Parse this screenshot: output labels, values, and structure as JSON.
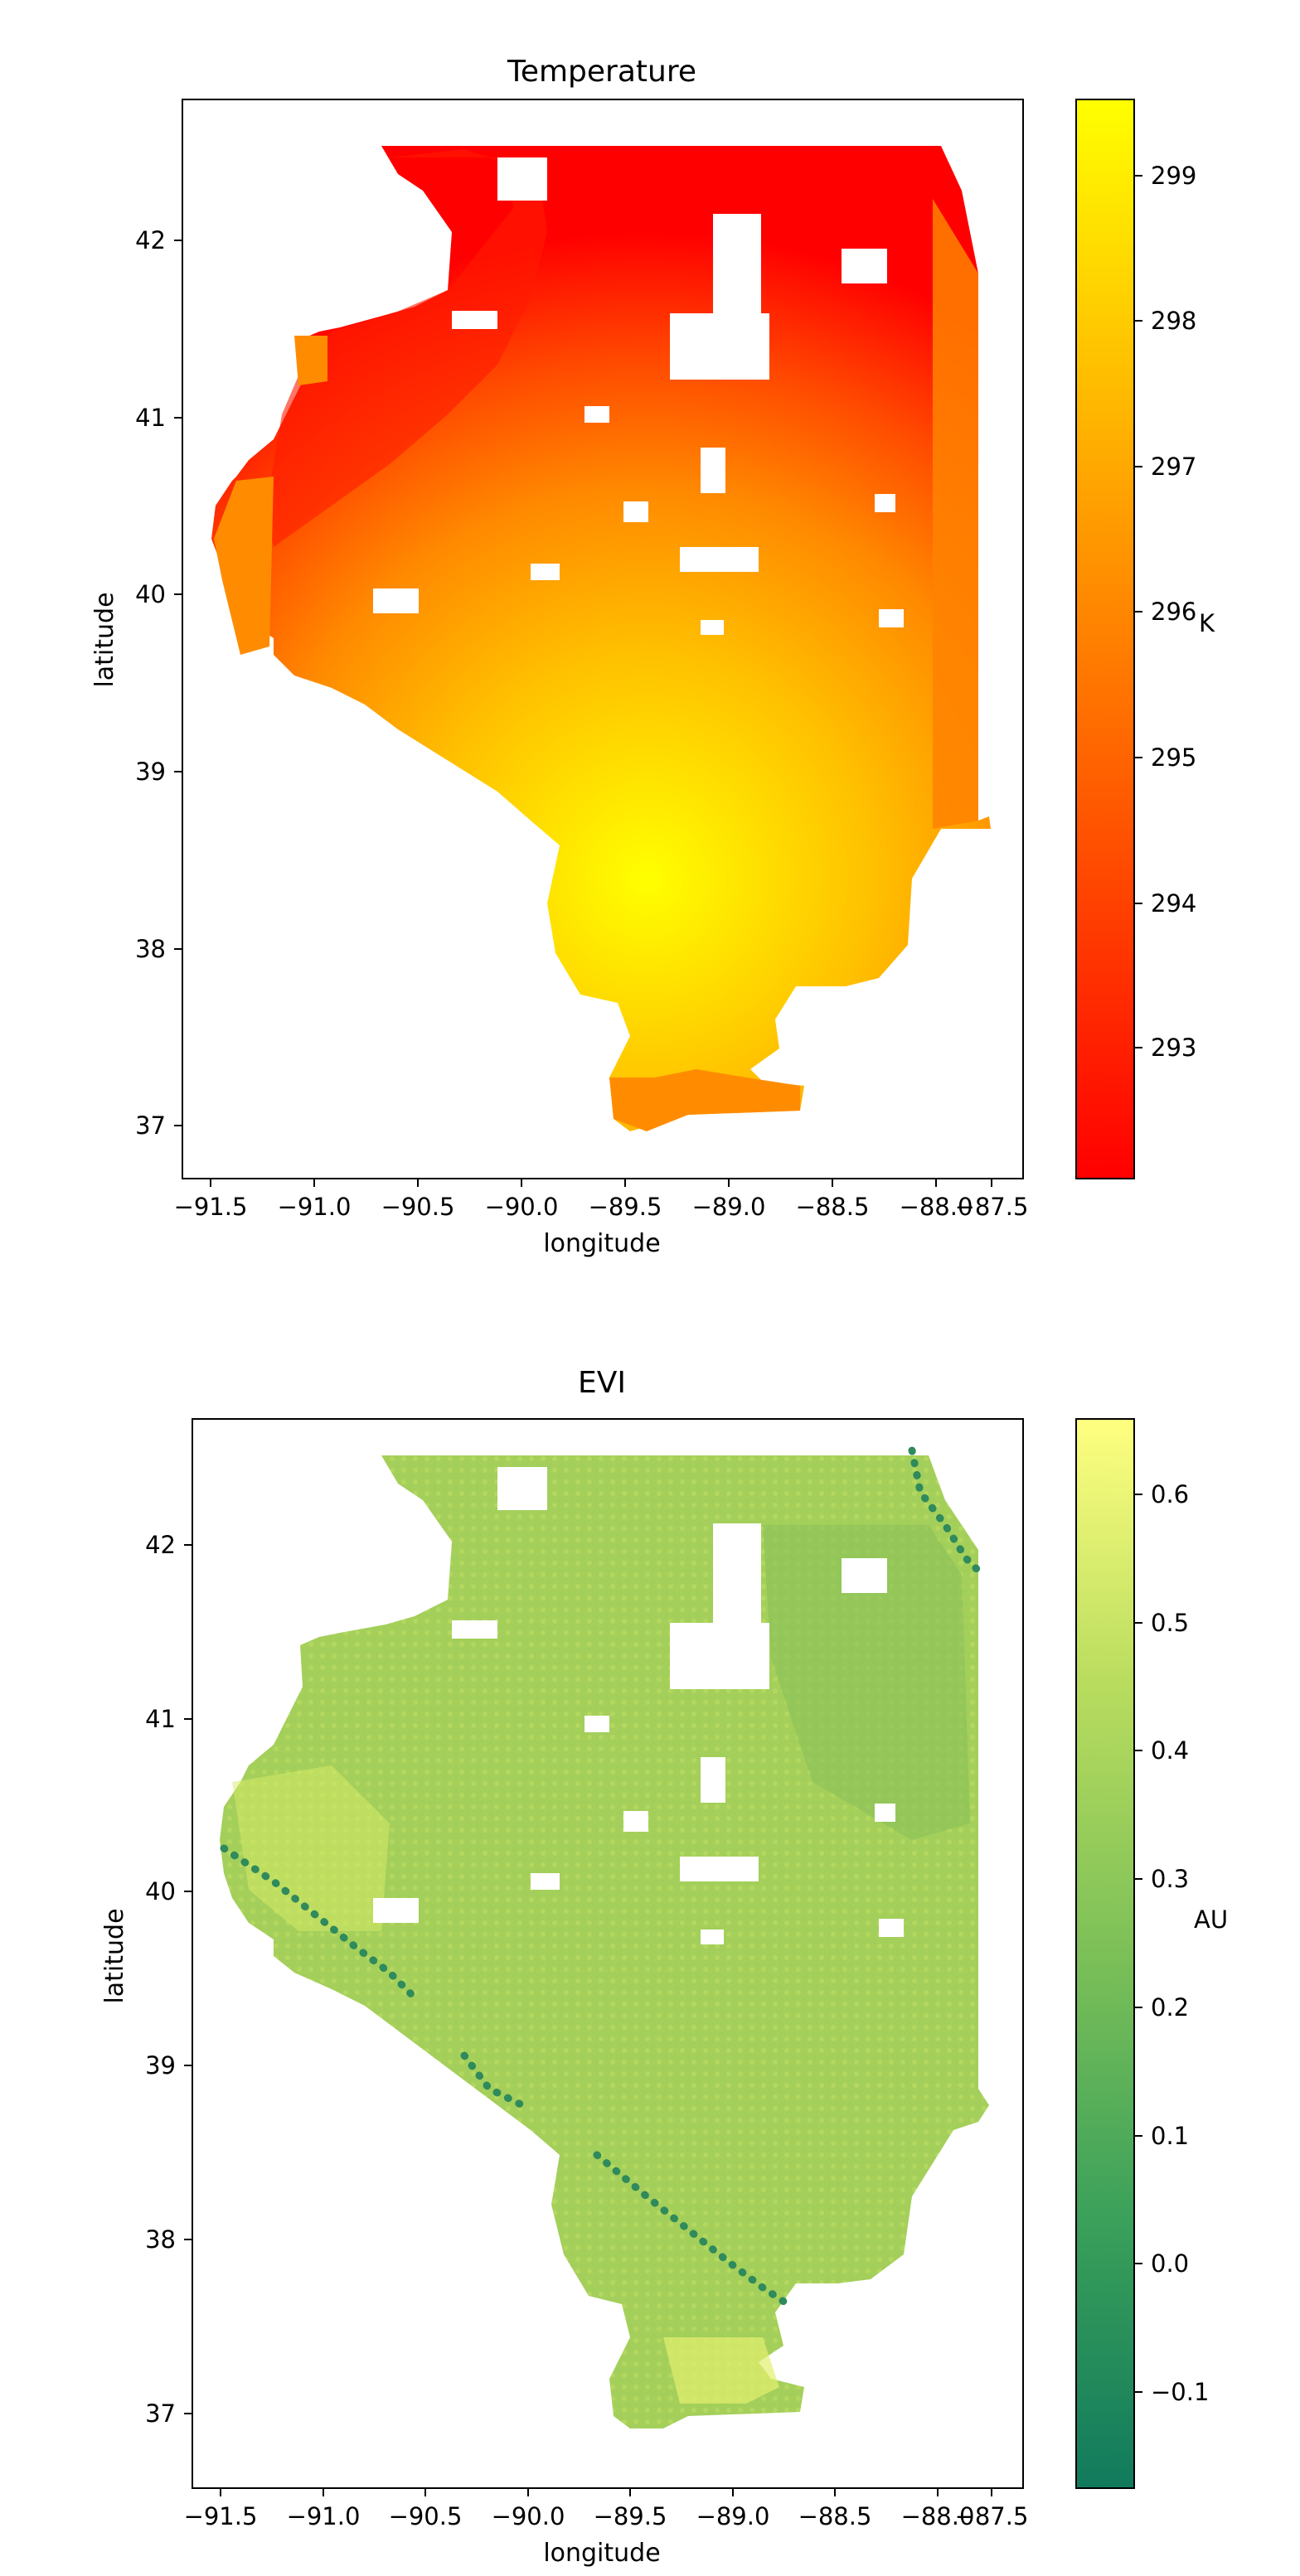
{
  "chart_data": [
    {
      "type": "heatmap",
      "subtype": "geographic scatter map",
      "title": "Temperature",
      "xlabel": "longitude",
      "ylabel": "latitude",
      "xlim": [
        -91.75,
        -87.35
      ],
      "ylim": [
        36.75,
        42.8
      ],
      "xticks": [
        -91.5,
        -91.0,
        -90.5,
        -90.0,
        -89.5,
        -89.0,
        -88.5,
        -88.0,
        -87.5
      ],
      "xtick_labels": [
        "−91.5",
        "−91.0",
        "−90.5",
        "−90.0",
        "−89.5",
        "−89.0",
        "−88.5",
        "−88.0",
        "−87.5"
      ],
      "yticks": [
        37,
        38,
        39,
        40,
        41,
        42
      ],
      "ytick_labels": [
        "37",
        "38",
        "39",
        "40",
        "41",
        "42"
      ],
      "colorbar": {
        "label": "K",
        "range": [
          292.1,
          299.55
        ],
        "ticks": [
          293,
          294,
          295,
          296,
          297,
          298,
          299
        ],
        "tick_labels": [
          "293",
          "294",
          "295",
          "296",
          "297",
          "298",
          "299"
        ],
        "colormap": [
          "#ff0000",
          "#ff8000",
          "#ffff00"
        ]
      },
      "field": {
        "description": "Temperature field over Illinois: coolest in the north-west, warmest in the south-central region",
        "points": [
          {
            "lon": -90.9,
            "lat": 41.1,
            "value": 292.3
          },
          {
            "lon": -91.4,
            "lat": 40.3,
            "value": 296.8
          },
          {
            "lon": -90.0,
            "lat": 42.1,
            "value": 294.2
          },
          {
            "lon": -88.0,
            "lat": 42.3,
            "value": 296.0
          },
          {
            "lon": -89.0,
            "lat": 38.4,
            "value": 299.5
          },
          {
            "lon": -89.2,
            "lat": 37.1,
            "value": 296.8
          },
          {
            "lon": -87.6,
            "lat": 38.8,
            "value": 296.8
          }
        ]
      },
      "grid": false,
      "legend": "none"
    },
    {
      "type": "heatmap",
      "subtype": "geographic scatter map",
      "title": "EVI",
      "xlabel": "longitude",
      "ylabel": "latitude",
      "xlim": [
        -91.75,
        -87.35
      ],
      "ylim": [
        36.7,
        42.8
      ],
      "xticks": [
        -91.5,
        -91.0,
        -90.5,
        -90.0,
        -89.5,
        -89.0,
        -88.5,
        -88.0,
        -87.5
      ],
      "xtick_labels": [
        "−91.5",
        "−91.0",
        "−90.5",
        "−90.0",
        "−89.5",
        "−89.0",
        "−88.5",
        "−88.0",
        "−87.5"
      ],
      "yticks": [
        37,
        38,
        39,
        40,
        41,
        42
      ],
      "ytick_labels": [
        "37",
        "38",
        "39",
        "40",
        "41",
        "42"
      ],
      "colorbar": {
        "label": "AU",
        "range": [
          -0.155,
          0.675
        ],
        "ticks": [
          -0.1,
          0.0,
          0.1,
          0.2,
          0.3,
          0.4,
          0.5,
          0.6
        ],
        "tick_labels": [
          "−0.1",
          "0.0",
          "0.1",
          "0.2",
          "0.3",
          "0.4",
          "0.5",
          "0.6"
        ],
        "colormap": [
          "#117a5c",
          "#3aa05a",
          "#7cc058",
          "#b8dc5e",
          "#ffff80"
        ]
      },
      "field": {
        "description": "EVI mostly 0.35-0.55 across Illinois, lower (~0.05) along rivers and the north-east corner",
        "points": [
          {
            "lon": -90.5,
            "lat": 40.5,
            "value": 0.46
          },
          {
            "lon": -89.0,
            "lat": 39.5,
            "value": 0.47
          },
          {
            "lon": -88.5,
            "lat": 41.0,
            "value": 0.36
          },
          {
            "lon": -87.6,
            "lat": 41.8,
            "value": 0.03
          },
          {
            "lon": -90.9,
            "lat": 39.5,
            "value": 0.05
          },
          {
            "lon": -89.1,
            "lat": 38.1,
            "value": 0.02
          },
          {
            "lon": -89.0,
            "lat": 37.3,
            "value": 0.55
          }
        ]
      },
      "grid": false,
      "legend": "none"
    }
  ]
}
